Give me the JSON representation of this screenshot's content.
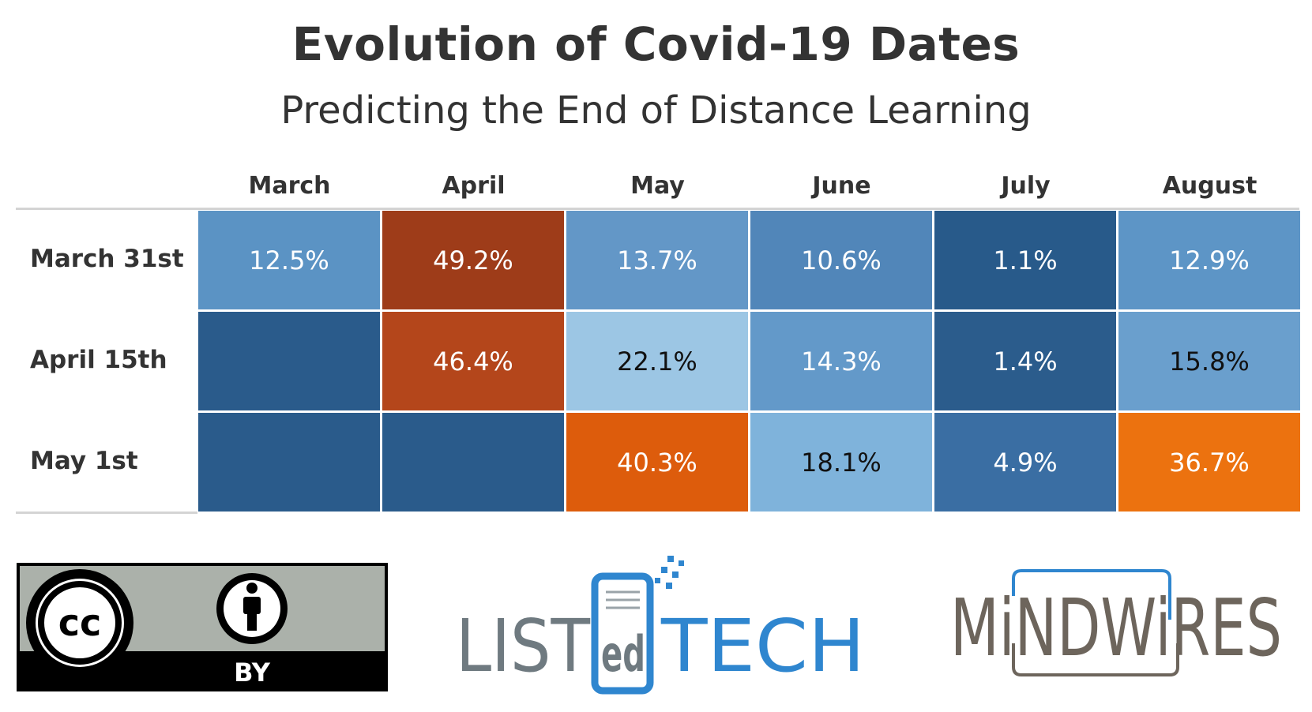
{
  "chart_data": {
    "type": "heatmap",
    "title": "Evolution of Covid-19 Dates",
    "subtitle": "Predicting the End of Distance Learning",
    "columns": [
      "March",
      "April",
      "May",
      "June",
      "July",
      "August"
    ],
    "rows": [
      "March 31st",
      "April 15th",
      "May 1st"
    ],
    "values": [
      [
        12.5,
        49.2,
        13.7,
        10.6,
        1.1,
        12.9
      ],
      [
        null,
        46.4,
        22.1,
        14.3,
        1.4,
        15.8
      ],
      [
        null,
        null,
        40.3,
        18.1,
        4.9,
        36.7
      ]
    ],
    "labels": [
      [
        "12.5%",
        "49.2%",
        "13.7%",
        "10.6%",
        "1.1%",
        "12.9%"
      ],
      [
        "",
        "46.4%",
        "22.1%",
        "14.3%",
        "1.4%",
        "15.8%"
      ],
      [
        "",
        "",
        "40.3%",
        "18.1%",
        "4.9%",
        "36.7%"
      ]
    ],
    "colors": [
      [
        "#5b93c4",
        "#9e3c19",
        "#6397c7",
        "#5186b9",
        "#285a8a",
        "#5d95c6"
      ],
      [
        "#2a5b8b",
        "#b4461b",
        "#9cc6e4",
        "#6399c9",
        "#2b5c8c",
        "#6a9fcd"
      ],
      [
        "#2a5b8b",
        "#2a5b8b",
        "#dd5c0c",
        "#7fb3db",
        "#3a6ea3",
        "#ec720f"
      ]
    ],
    "text_colors": [
      [
        "#ffffff",
        "#ffffff",
        "#ffffff",
        "#ffffff",
        "#ffffff",
        "#ffffff"
      ],
      [
        "#ffffff",
        "#ffffff",
        "#111111",
        "#ffffff",
        "#ffffff",
        "#111111"
      ],
      [
        "#ffffff",
        "#ffffff",
        "#ffffff",
        "#111111",
        "#ffffff",
        "#ffffff"
      ]
    ]
  },
  "logos": {
    "cc": {
      "text": "cc",
      "by": "BY"
    },
    "listedtech": {
      "list": "LIST",
      "ed": "ed",
      "tech": "TECH"
    },
    "mindwires": {
      "text": "MiNDWiRES"
    }
  }
}
